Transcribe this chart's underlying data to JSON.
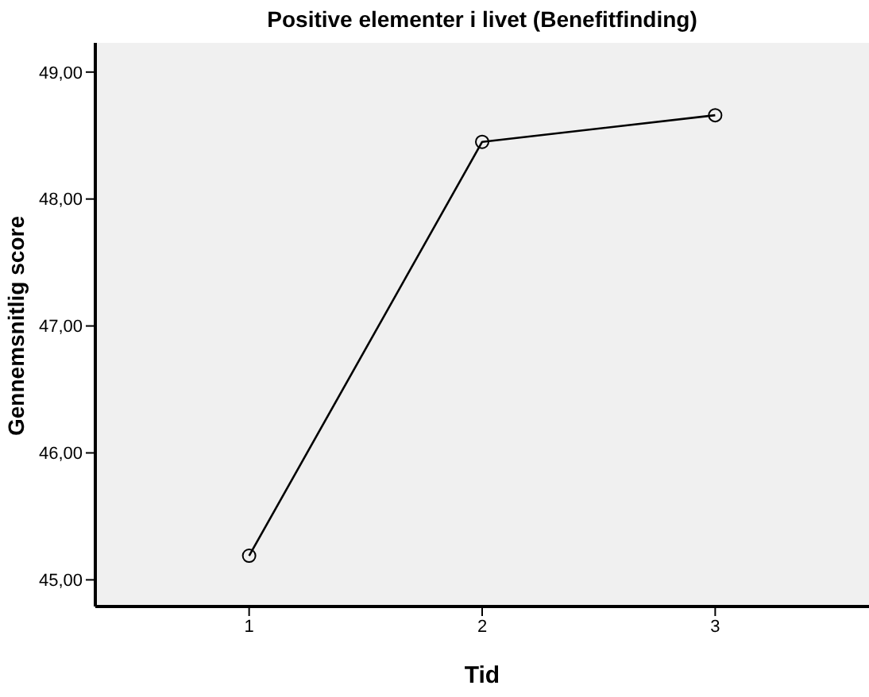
{
  "chart_data": {
    "type": "line",
    "title": "Positive elementer i livet (Benefitfinding)",
    "xlabel": "Tid",
    "ylabel": "Gennemsnitlig score",
    "x": [
      1,
      2,
      3
    ],
    "series": [
      {
        "color": "#000000",
        "values": [
          45.19,
          48.45,
          48.66
        ]
      }
    ],
    "xlim": [
      0.34,
      3.66
    ],
    "xticks": [
      1,
      2,
      3
    ],
    "ylim": [
      44.79,
      49.23
    ],
    "yticks": [
      {
        "value": 45,
        "label": "45,00"
      },
      {
        "value": 46,
        "label": "46,00"
      },
      {
        "value": 47,
        "label": "47,00"
      },
      {
        "value": 48,
        "label": "48,00"
      },
      {
        "value": 49,
        "label": "49,00"
      }
    ],
    "marker": "circle",
    "line_style": "solid",
    "grid": false,
    "legend": false
  }
}
